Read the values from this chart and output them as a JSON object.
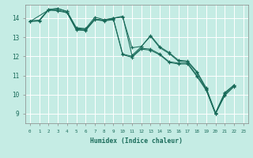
{
  "xlabel": "Humidex (Indice chaleur)",
  "bg_color": "#c5ece4",
  "grid_color": "#ffffff",
  "line_color": "#1a6b5a",
  "xlim": [
    -0.5,
    23.5
  ],
  "ylim": [
    8.5,
    14.7
  ],
  "yticks": [
    9,
    10,
    11,
    12,
    13,
    14
  ],
  "xticks": [
    0,
    1,
    2,
    3,
    4,
    5,
    6,
    7,
    8,
    9,
    10,
    11,
    12,
    13,
    14,
    15,
    16,
    17,
    18,
    19,
    20,
    21,
    22,
    23
  ],
  "lines": [
    [
      [
        0,
        13.85
      ],
      [
        1,
        13.88
      ],
      [
        2,
        14.45
      ],
      [
        3,
        14.5
      ],
      [
        4,
        14.35
      ],
      [
        5,
        13.5
      ],
      [
        6,
        13.45
      ],
      [
        7,
        14.05
      ],
      [
        8,
        13.92
      ],
      [
        9,
        14.0
      ],
      [
        10,
        14.1
      ],
      [
        11,
        12.05
      ],
      [
        12,
        12.5
      ],
      [
        13,
        13.1
      ],
      [
        14,
        12.5
      ],
      [
        15,
        12.2
      ],
      [
        16,
        11.8
      ],
      [
        17,
        11.75
      ],
      [
        18,
        11.2
      ],
      [
        19,
        10.35
      ],
      [
        20,
        9.05
      ],
      [
        21,
        10.1
      ],
      [
        22,
        10.5
      ]
    ],
    [
      [
        0,
        13.85
      ],
      [
        1,
        13.88
      ],
      [
        2,
        14.45
      ],
      [
        3,
        14.5
      ],
      [
        4,
        14.35
      ],
      [
        5,
        13.45
      ],
      [
        6,
        13.42
      ],
      [
        7,
        13.95
      ],
      [
        8,
        13.88
      ],
      [
        9,
        14.0
      ],
      [
        10,
        14.05
      ],
      [
        11,
        12.45
      ],
      [
        12,
        12.52
      ],
      [
        13,
        13.05
      ],
      [
        14,
        12.45
      ],
      [
        15,
        12.15
      ],
      [
        16,
        11.75
      ],
      [
        17,
        11.72
      ],
      [
        18,
        11.15
      ],
      [
        19,
        10.3
      ],
      [
        20,
        9.0
      ],
      [
        21,
        10.05
      ],
      [
        22,
        10.5
      ]
    ],
    [
      [
        0,
        13.82
      ],
      [
        1,
        13.85
      ],
      [
        2,
        14.42
      ],
      [
        3,
        14.42
      ],
      [
        4,
        14.3
      ],
      [
        5,
        13.4
      ],
      [
        6,
        13.38
      ],
      [
        7,
        13.95
      ],
      [
        8,
        13.88
      ],
      [
        9,
        13.95
      ],
      [
        10,
        12.12
      ],
      [
        11,
        12.0
      ],
      [
        12,
        12.42
      ],
      [
        13,
        12.38
      ],
      [
        14,
        12.12
      ],
      [
        15,
        11.72
      ],
      [
        16,
        11.65
      ],
      [
        17,
        11.65
      ],
      [
        18,
        11.0
      ],
      [
        19,
        10.28
      ],
      [
        20,
        9.0
      ],
      [
        21,
        9.98
      ],
      [
        22,
        10.45
      ]
    ],
    [
      [
        0,
        13.82
      ],
      [
        2,
        14.42
      ],
      [
        3,
        14.38
      ],
      [
        4,
        14.28
      ],
      [
        5,
        13.38
      ],
      [
        6,
        13.35
      ],
      [
        7,
        13.92
      ],
      [
        8,
        13.85
      ],
      [
        9,
        13.92
      ],
      [
        10,
        12.08
      ],
      [
        11,
        11.95
      ],
      [
        12,
        12.38
      ],
      [
        13,
        12.32
      ],
      [
        14,
        12.08
      ],
      [
        15,
        11.68
      ],
      [
        16,
        11.6
      ],
      [
        17,
        11.6
      ],
      [
        18,
        10.95
      ],
      [
        19,
        10.22
      ],
      [
        20,
        9.0
      ],
      [
        21,
        9.95
      ],
      [
        22,
        10.42
      ]
    ]
  ]
}
